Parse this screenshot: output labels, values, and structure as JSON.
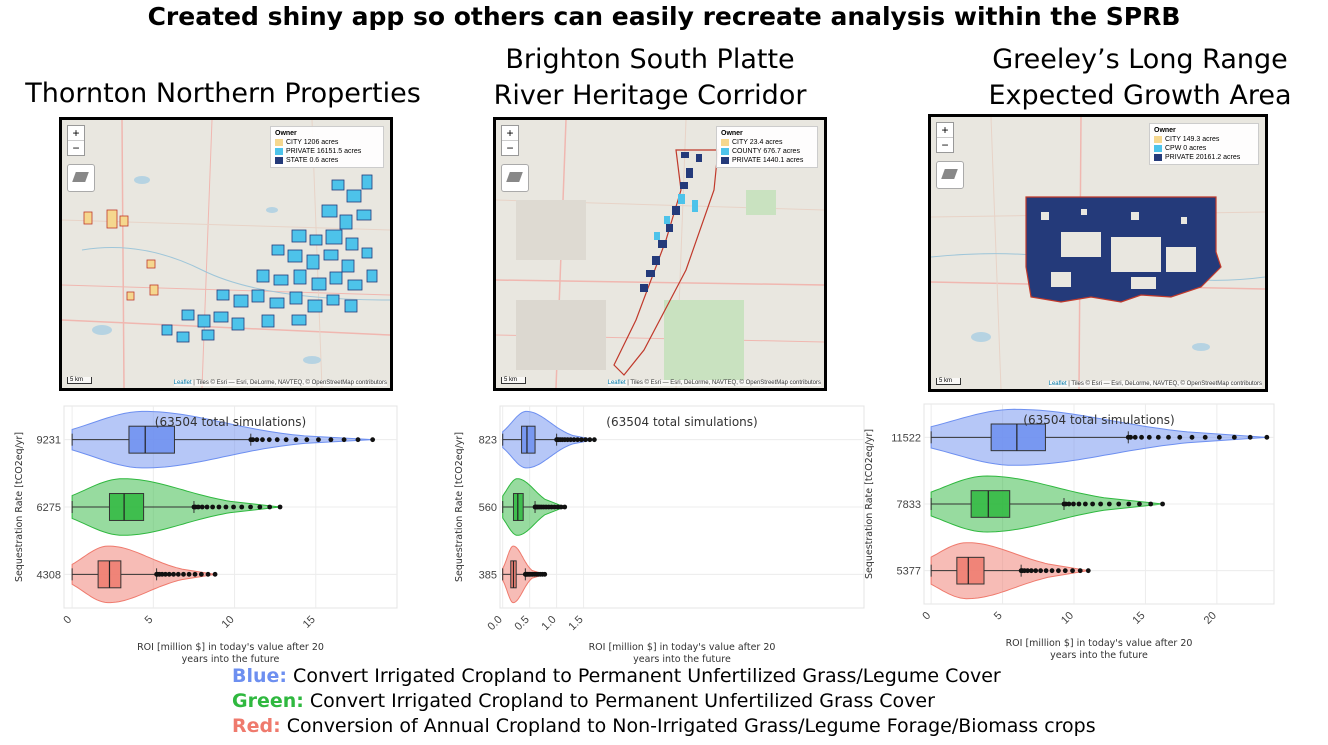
{
  "slide_title": "Created shiny app so others can easily recreate analysis within the SPRB",
  "panels": [
    {
      "title_lines": [
        "Thornton Northern Properties"
      ],
      "map": {
        "legend_title": "Owner",
        "legend": [
          {
            "label": "CITY 1206 acres",
            "color": "#f5d78e"
          },
          {
            "label": "PRIVATE 16151.5 acres",
            "color": "#4dc3ea"
          },
          {
            "label": "STATE 0.6 acres",
            "color": "#243a7a"
          }
        ],
        "scale": "5 km",
        "attribution_leaflet": "Leaflet",
        "attribution": " | Tiles © Esri — Esri, DeLorme, NAVTEQ, © OpenStreetMap contributors"
      }
    },
    {
      "title_lines": [
        "Brighton South Platte",
        "River Heritage Corridor"
      ],
      "map": {
        "legend_title": "Owner",
        "legend": [
          {
            "label": "CITY 23.4 acres",
            "color": "#f5d78e"
          },
          {
            "label": "COUNTY 676.7 acres",
            "color": "#4dc3ea"
          },
          {
            "label": "PRIVATE 1440.1 acres",
            "color": "#243a7a"
          }
        ],
        "scale": "5 km",
        "attribution_leaflet": "Leaflet",
        "attribution": " | Tiles © Esri — Esri, DeLorme, NAVTEQ, © OpenStreetMap contributors"
      }
    },
    {
      "title_lines": [
        "Greeley’s Long Range",
        "Expected Growth Area"
      ],
      "map": {
        "legend_title": "Owner",
        "legend": [
          {
            "label": "CITY 149.3 acres",
            "color": "#f5d78e"
          },
          {
            "label": "CPW 0 acres",
            "color": "#4dc3ea"
          },
          {
            "label": "PRIVATE 20161.2 acres",
            "color": "#243a7a"
          }
        ],
        "scale": "5 km",
        "attribution_leaflet": "Leaflet",
        "attribution": " | Tiles © Esri — Esri, DeLorme, NAVTEQ, © OpenStreetMap contributors"
      }
    }
  ],
  "chart_data": [
    {
      "type": "violin",
      "title": "",
      "annotation": "(63504 total simulations)",
      "ylabel": "Sequestration Rate [tCO2eq/yr]",
      "xlabel": "ROI [million $] in today's value after 20 years into the future",
      "xlim": [
        -0.5,
        20
      ],
      "xticks": [
        0,
        5,
        10,
        15
      ],
      "categories": [
        "9231",
        "6275",
        "4308"
      ],
      "series": [
        {
          "color": "#6d8ff0",
          "box": {
            "min": 0,
            "q1": 3.5,
            "median": 4.5,
            "q3": 6.3,
            "whisker_high": 11,
            "max": 18.5
          }
        },
        {
          "color": "#2fb83f",
          "box": {
            "min": 0,
            "q1": 2.3,
            "median": 3.2,
            "q3": 4.4,
            "whisker_high": 7.5,
            "max": 12.8
          }
        },
        {
          "color": "#ef7a6d",
          "box": {
            "min": 0,
            "q1": 1.6,
            "median": 2.3,
            "q3": 3.0,
            "whisker_high": 5.2,
            "max": 8.8
          }
        }
      ]
    },
    {
      "type": "violin",
      "title": "",
      "annotation": "(63504 total simulations)",
      "ylabel": "Sequestration Rate [tCO2eq/yr]",
      "xlabel": "ROI [million $] in today's value after 20 years into the future",
      "xlim": [
        -0.05,
        6.7
      ],
      "xticks": [
        0.0,
        0.5,
        1.0,
        1.5
      ],
      "xtick_labels": [
        "0.0",
        "0.5",
        "1.0",
        "1.5"
      ],
      "categories": [
        "823",
        "560",
        "385"
      ],
      "series": [
        {
          "color": "#6d8ff0",
          "box": {
            "min": 0,
            "q1": 0.35,
            "median": 0.45,
            "q3": 0.6,
            "whisker_high": 1.0,
            "max": 1.7
          }
        },
        {
          "color": "#2fb83f",
          "box": {
            "min": 0,
            "q1": 0.2,
            "median": 0.28,
            "q3": 0.38,
            "whisker_high": 0.6,
            "max": 1.15
          }
        },
        {
          "color": "#ef7a6d",
          "box": {
            "min": 0,
            "q1": 0.15,
            "median": 0.2,
            "q3": 0.25,
            "whisker_high": 0.42,
            "max": 0.78
          }
        }
      ]
    },
    {
      "type": "violin",
      "title": "",
      "annotation": "(63504 total simulations)",
      "ylabel": "Sequestration Rate [tCO2eq/yr]",
      "xlabel": "ROI [million $] in today's value after 20 years into the future",
      "xlim": [
        -0.5,
        24
      ],
      "xticks": [
        0,
        5,
        10,
        15,
        20
      ],
      "categories": [
        "11522",
        "7833",
        "5377"
      ],
      "series": [
        {
          "color": "#6d8ff0",
          "box": {
            "min": 0,
            "q1": 4.2,
            "median": 6.0,
            "q3": 8.0,
            "whisker_high": 13.8,
            "max": 23.5
          }
        },
        {
          "color": "#2fb83f",
          "box": {
            "min": 0,
            "q1": 2.8,
            "median": 4.0,
            "q3": 5.5,
            "whisker_high": 9.3,
            "max": 16.2
          }
        },
        {
          "color": "#ef7a6d",
          "box": {
            "min": 0,
            "q1": 1.8,
            "median": 2.6,
            "q3": 3.7,
            "whisker_high": 6.3,
            "max": 11.0
          }
        }
      ]
    }
  ],
  "key": [
    {
      "label": "Blue:",
      "text": " Convert Irrigated Cropland to Permanent Unfertilized Grass/Legume Cover",
      "color": "#6d8ff0"
    },
    {
      "label": "Green:",
      "text": " Convert Irrigated Cropland to Permanent Unfertilized Grass Cover",
      "color": "#2fb83f"
    },
    {
      "label": "Red:",
      "text": " Conversion of Annual Cropland to Non-Irrigated Grass/Legume Forage/Biomass crops",
      "color": "#ef7a6d"
    }
  ]
}
